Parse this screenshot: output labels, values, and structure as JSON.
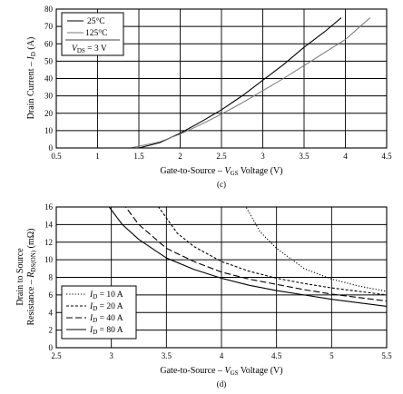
{
  "chart_data": [
    {
      "type": "line",
      "caption": "(c)",
      "xlabel_parts": [
        "Gate-to-Source – ",
        "V",
        "GS",
        " Voltage (V)"
      ],
      "ylabel_parts": [
        "Drain Current – ",
        "I",
        "D",
        " (A)"
      ],
      "xlim": [
        0.5,
        4.5
      ],
      "ylim": [
        0,
        80
      ],
      "xticks": [
        "0.5",
        "1",
        "1.5",
        "2",
        "2.5",
        "3",
        "3.5",
        "4",
        "4.5"
      ],
      "yticks": [
        "0",
        "10",
        "20",
        "30",
        "40",
        "50",
        "60",
        "70",
        "80"
      ],
      "grid": true,
      "legend_position": "top-left",
      "legend_note_parts": [
        "V",
        "DS",
        " = 3 V"
      ],
      "series": [
        {
          "name": "25°C",
          "color": "#000000",
          "style": "solid",
          "x": [
            1.5,
            1.75,
            2.0,
            2.25,
            2.5,
            2.75,
            3.0,
            3.25,
            3.5,
            3.75,
            3.95
          ],
          "y": [
            0,
            3,
            8.5,
            15,
            22,
            30,
            39,
            48,
            58,
            67,
            75
          ]
        },
        {
          "name": "125°C",
          "color": "#777777",
          "style": "solid",
          "x": [
            1.4,
            1.75,
            2.0,
            2.25,
            2.5,
            2.75,
            3.0,
            3.25,
            3.5,
            3.75,
            4.0,
            4.3
          ],
          "y": [
            0,
            3.5,
            8,
            13.5,
            19.5,
            26,
            33,
            40,
            47.5,
            55,
            62.5,
            75
          ]
        }
      ]
    },
    {
      "type": "line",
      "caption": "(d)",
      "xlabel_parts": [
        "Gate-to-Source – ",
        "V",
        "GS",
        " Voltage (V)"
      ],
      "ylabel_line1": "Drain to Source",
      "ylabel_parts": [
        "Resistance – ",
        "R",
        "DS(ON)",
        " (mΩ)"
      ],
      "xlim": [
        2.5,
        5.5
      ],
      "ylim": [
        0,
        16
      ],
      "xticks": [
        "2.5",
        "3",
        "3.5",
        "4",
        "4.5",
        "5",
        "5.5"
      ],
      "yticks": [
        "0",
        "2",
        "4",
        "6",
        "8",
        "10",
        "12",
        "14",
        "16"
      ],
      "grid": true,
      "legend_position": "bottom-left",
      "series": [
        {
          "name_parts": [
            "I",
            "D",
            " = 10 A"
          ],
          "color": "#000000",
          "style": "dotted",
          "x": [
            4.2,
            4.35,
            4.5,
            4.75,
            5.0,
            5.25,
            5.5
          ],
          "y": [
            16.5,
            13.2,
            11.3,
            9.0,
            7.8,
            7.0,
            6.4
          ]
        },
        {
          "name_parts": [
            "I",
            "D",
            " = 20 A"
          ],
          "color": "#000000",
          "style": "short-dash",
          "x": [
            3.4,
            3.6,
            3.75,
            4.0,
            4.25,
            4.5,
            4.75,
            5.0,
            5.25,
            5.5
          ],
          "y": [
            16.5,
            13.0,
            11.5,
            9.8,
            8.7,
            7.9,
            7.3,
            6.8,
            6.4,
            6.0
          ]
        },
        {
          "name_parts": [
            "I",
            "D",
            " = 40 A"
          ],
          "color": "#000000",
          "style": "long-dash",
          "x": [
            3.1,
            3.25,
            3.5,
            3.75,
            4.0,
            4.25,
            4.5,
            4.75,
            5.0,
            5.25,
            5.5
          ],
          "y": [
            16.5,
            14.0,
            11.3,
            9.8,
            8.6,
            7.8,
            7.2,
            6.6,
            6.1,
            5.7,
            5.3
          ]
        },
        {
          "name_parts": [
            "I",
            "D",
            " = 80 A"
          ],
          "color": "#000000",
          "style": "solid",
          "x": [
            2.95,
            3.1,
            3.25,
            3.5,
            3.75,
            4.0,
            4.25,
            4.5,
            4.75,
            5.0,
            5.25,
            5.5
          ],
          "y": [
            16.5,
            14.0,
            12.3,
            10.2,
            8.9,
            7.9,
            7.1,
            6.5,
            6.0,
            5.5,
            5.1,
            4.7
          ]
        }
      ]
    }
  ]
}
